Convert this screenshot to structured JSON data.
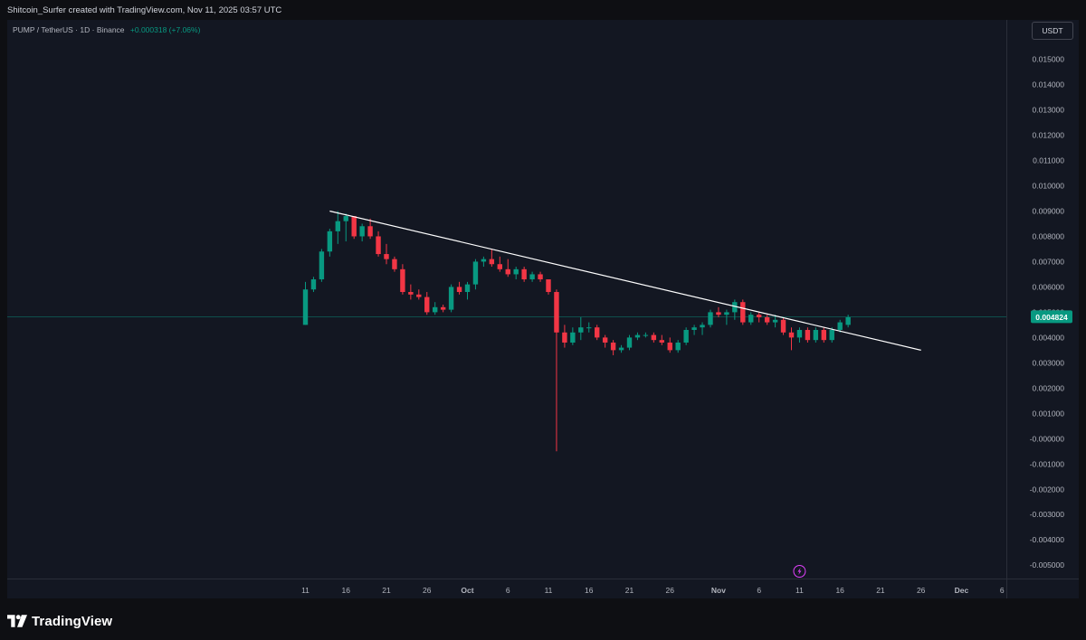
{
  "header": {
    "title": "Shitcoin_Surfer created with TradingView.com, Nov 11, 2025 03:57 UTC"
  },
  "symbol": {
    "pair": "PUMP / TetherUS",
    "interval": "1D",
    "exchange": "Binance",
    "change": "+0.000318 (+7.06%)"
  },
  "currency_badge": "USDT",
  "branding": {
    "logo_text": "TradingView",
    "logo_icon": "tradingview-logo-icon"
  },
  "colors": {
    "up": "#089981",
    "down": "#f23645",
    "trendline": "#ffffff",
    "price_line": "#089981",
    "event_marker": "#e040fb"
  },
  "chart_data": {
    "type": "candlestick",
    "interval": "1D",
    "y_range": [
      -0.0055,
      0.0155
    ],
    "y_ticks": [
      "0.015000",
      "0.014000",
      "0.013000",
      "0.012000",
      "0.011000",
      "0.010000",
      "0.009000",
      "0.008000",
      "0.007000",
      "0.006000",
      "0.005000",
      "0.004000",
      "0.003000",
      "0.002000",
      "0.001000",
      "-0.000000",
      "-0.001000",
      "-0.002000",
      "-0.003000",
      "-0.004000",
      "-0.005000"
    ],
    "x_ticks": [
      {
        "label": "11",
        "day": 0
      },
      {
        "label": "16",
        "day": 5
      },
      {
        "label": "21",
        "day": 10
      },
      {
        "label": "26",
        "day": 15
      },
      {
        "label": "Oct",
        "day": 20,
        "bold": true
      },
      {
        "label": "6",
        "day": 25
      },
      {
        "label": "11",
        "day": 30
      },
      {
        "label": "16",
        "day": 35
      },
      {
        "label": "21",
        "day": 40
      },
      {
        "label": "26",
        "day": 45
      },
      {
        "label": "Nov",
        "day": 51,
        "bold": true
      },
      {
        "label": "6",
        "day": 56
      },
      {
        "label": "11",
        "day": 61
      },
      {
        "label": "16",
        "day": 66
      },
      {
        "label": "21",
        "day": 71
      },
      {
        "label": "26",
        "day": 76
      },
      {
        "label": "Dec",
        "day": 81,
        "bold": true
      },
      {
        "label": "6",
        "day": 86
      }
    ],
    "last_price_label": "0.004824",
    "last_price": 0.004824,
    "grid": false,
    "candles": [
      {
        "o": 0.0045,
        "h": 0.0062,
        "l": 0.0045,
        "c": 0.0059
      },
      {
        "o": 0.0059,
        "h": 0.0064,
        "l": 0.0058,
        "c": 0.0063
      },
      {
        "o": 0.0063,
        "h": 0.0075,
        "l": 0.0062,
        "c": 0.0074
      },
      {
        "o": 0.0074,
        "h": 0.0083,
        "l": 0.0072,
        "c": 0.0082
      },
      {
        "o": 0.0082,
        "h": 0.009,
        "l": 0.0077,
        "c": 0.0086
      },
      {
        "o": 0.0086,
        "h": 0.0089,
        "l": 0.0078,
        "c": 0.0088
      },
      {
        "o": 0.0088,
        "h": 0.0088,
        "l": 0.0079,
        "c": 0.008
      },
      {
        "o": 0.008,
        "h": 0.0085,
        "l": 0.0078,
        "c": 0.0084
      },
      {
        "o": 0.0084,
        "h": 0.0087,
        "l": 0.0079,
        "c": 0.008
      },
      {
        "o": 0.008,
        "h": 0.0082,
        "l": 0.0072,
        "c": 0.0073
      },
      {
        "o": 0.0073,
        "h": 0.0077,
        "l": 0.0069,
        "c": 0.0071
      },
      {
        "o": 0.0071,
        "h": 0.0072,
        "l": 0.0066,
        "c": 0.0067
      },
      {
        "o": 0.0067,
        "h": 0.0069,
        "l": 0.0057,
        "c": 0.0058
      },
      {
        "o": 0.0058,
        "h": 0.0061,
        "l": 0.0055,
        "c": 0.0057
      },
      {
        "o": 0.0057,
        "h": 0.0059,
        "l": 0.0055,
        "c": 0.0056
      },
      {
        "o": 0.0056,
        "h": 0.0058,
        "l": 0.0049,
        "c": 0.005
      },
      {
        "o": 0.005,
        "h": 0.0054,
        "l": 0.0049,
        "c": 0.0052
      },
      {
        "o": 0.0052,
        "h": 0.0053,
        "l": 0.005,
        "c": 0.0051
      },
      {
        "o": 0.0051,
        "h": 0.0061,
        "l": 0.005,
        "c": 0.006
      },
      {
        "o": 0.006,
        "h": 0.0062,
        "l": 0.0057,
        "c": 0.0058
      },
      {
        "o": 0.0058,
        "h": 0.0062,
        "l": 0.0055,
        "c": 0.0061
      },
      {
        "o": 0.0061,
        "h": 0.0071,
        "l": 0.0059,
        "c": 0.007
      },
      {
        "o": 0.007,
        "h": 0.0072,
        "l": 0.0068,
        "c": 0.0071
      },
      {
        "o": 0.0071,
        "h": 0.0075,
        "l": 0.0068,
        "c": 0.0069
      },
      {
        "o": 0.0069,
        "h": 0.0072,
        "l": 0.0066,
        "c": 0.0067
      },
      {
        "o": 0.0067,
        "h": 0.0071,
        "l": 0.0064,
        "c": 0.0065
      },
      {
        "o": 0.0065,
        "h": 0.0068,
        "l": 0.0063,
        "c": 0.0067
      },
      {
        "o": 0.0067,
        "h": 0.0068,
        "l": 0.0062,
        "c": 0.0063
      },
      {
        "o": 0.0063,
        "h": 0.0066,
        "l": 0.0062,
        "c": 0.0065
      },
      {
        "o": 0.0065,
        "h": 0.0066,
        "l": 0.0062,
        "c": 0.0063
      },
      {
        "o": 0.0063,
        "h": 0.0063,
        "l": 0.0057,
        "c": 0.0058
      },
      {
        "o": 0.0058,
        "h": 0.0059,
        "l": -0.0005,
        "c": 0.0042
      },
      {
        "o": 0.0042,
        "h": 0.0045,
        "l": 0.0036,
        "c": 0.0038
      },
      {
        "o": 0.0038,
        "h": 0.0044,
        "l": 0.0037,
        "c": 0.0042
      },
      {
        "o": 0.0042,
        "h": 0.0048,
        "l": 0.0039,
        "c": 0.0044
      },
      {
        "o": 0.0044,
        "h": 0.0046,
        "l": 0.0042,
        "c": 0.0044
      },
      {
        "o": 0.0044,
        "h": 0.0045,
        "l": 0.0039,
        "c": 0.004
      },
      {
        "o": 0.004,
        "h": 0.0041,
        "l": 0.0036,
        "c": 0.0038
      },
      {
        "o": 0.0038,
        "h": 0.0039,
        "l": 0.0033,
        "c": 0.0035
      },
      {
        "o": 0.0035,
        "h": 0.0037,
        "l": 0.0034,
        "c": 0.0036
      },
      {
        "o": 0.0036,
        "h": 0.0041,
        "l": 0.0035,
        "c": 0.004
      },
      {
        "o": 0.004,
        "h": 0.0042,
        "l": 0.0039,
        "c": 0.0041
      },
      {
        "o": 0.0041,
        "h": 0.0042,
        "l": 0.004,
        "c": 0.0041
      },
      {
        "o": 0.0041,
        "h": 0.0042,
        "l": 0.0038,
        "c": 0.0039
      },
      {
        "o": 0.0039,
        "h": 0.0041,
        "l": 0.0037,
        "c": 0.0038
      },
      {
        "o": 0.0038,
        "h": 0.004,
        "l": 0.0034,
        "c": 0.0035
      },
      {
        "o": 0.0035,
        "h": 0.0039,
        "l": 0.0034,
        "c": 0.0038
      },
      {
        "o": 0.0038,
        "h": 0.0044,
        "l": 0.0037,
        "c": 0.0043
      },
      {
        "o": 0.0043,
        "h": 0.0045,
        "l": 0.0041,
        "c": 0.0044
      },
      {
        "o": 0.0044,
        "h": 0.0046,
        "l": 0.0041,
        "c": 0.0045
      },
      {
        "o": 0.0045,
        "h": 0.0051,
        "l": 0.0044,
        "c": 0.005
      },
      {
        "o": 0.005,
        "h": 0.0052,
        "l": 0.0048,
        "c": 0.0049
      },
      {
        "o": 0.0049,
        "h": 0.0051,
        "l": 0.0045,
        "c": 0.005
      },
      {
        "o": 0.005,
        "h": 0.0055,
        "l": 0.0047,
        "c": 0.0054
      },
      {
        "o": 0.0054,
        "h": 0.0055,
        "l": 0.0045,
        "c": 0.0046
      },
      {
        "o": 0.0046,
        "h": 0.005,
        "l": 0.0045,
        "c": 0.0049
      },
      {
        "o": 0.0049,
        "h": 0.005,
        "l": 0.0046,
        "c": 0.0048
      },
      {
        "o": 0.0048,
        "h": 0.0049,
        "l": 0.0045,
        "c": 0.0046
      },
      {
        "o": 0.0046,
        "h": 0.0049,
        "l": 0.0044,
        "c": 0.0047
      },
      {
        "o": 0.0047,
        "h": 0.0048,
        "l": 0.0041,
        "c": 0.0042
      },
      {
        "o": 0.0042,
        "h": 0.0044,
        "l": 0.0035,
        "c": 0.004
      },
      {
        "o": 0.004,
        "h": 0.0044,
        "l": 0.0038,
        "c": 0.0043
      },
      {
        "o": 0.0043,
        "h": 0.0044,
        "l": 0.0038,
        "c": 0.0039
      },
      {
        "o": 0.0039,
        "h": 0.0044,
        "l": 0.0038,
        "c": 0.0043
      },
      {
        "o": 0.0043,
        "h": 0.0044,
        "l": 0.0038,
        "c": 0.0039
      },
      {
        "o": 0.0039,
        "h": 0.0044,
        "l": 0.0038,
        "c": 0.0043
      },
      {
        "o": 0.0043,
        "h": 0.0047,
        "l": 0.0042,
        "c": 0.0046
      },
      {
        "o": 0.0045,
        "h": 0.0049,
        "l": 0.0044,
        "c": 0.0048
      }
    ],
    "candle_start_day": 0,
    "trendline": {
      "start": {
        "day": 3,
        "price": 0.009
      },
      "end": {
        "day": 76,
        "price": 0.0035
      }
    },
    "event_marker_day": 61
  }
}
